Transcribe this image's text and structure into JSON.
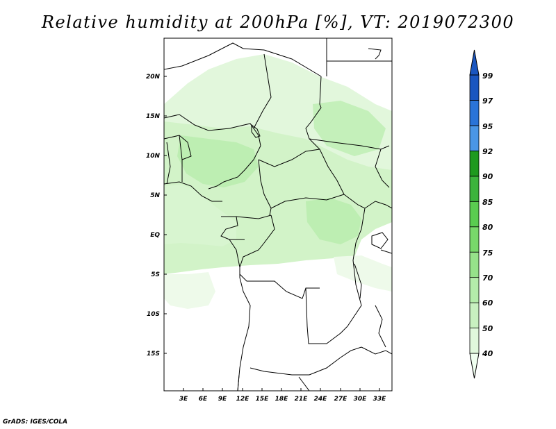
{
  "title": "Relative humidity at 200hPa [%], VT: 2019072300",
  "credit": "GrADS: IGES/COLA",
  "map": {
    "lat_labels": [
      "20N",
      "15N",
      "10N",
      "5N",
      "EQ",
      "5S",
      "10S",
      "15S"
    ],
    "lon_labels": [
      "3E",
      "6E",
      "9E",
      "12E",
      "15E",
      "18E",
      "21E",
      "24E",
      "27E",
      "30E",
      "33E"
    ]
  },
  "colorbar": {
    "labels": [
      "40",
      "50",
      "60",
      "70",
      "75",
      "80",
      "85",
      "90",
      "92",
      "95",
      "97",
      "99"
    ],
    "colors": [
      "#f0fff0",
      "#e0f8dc",
      "#c8f0c0",
      "#b4ecaa",
      "#96e28a",
      "#78d86a",
      "#5acc50",
      "#3cb43c",
      "#1e9a1e",
      "#4a96e6",
      "#2a74d8",
      "#1a56c0"
    ]
  },
  "palette": {
    "light": "#e4f8e0",
    "mid": "#ccf2c4",
    "strong": "#b6ecaa",
    "border": "#000000"
  }
}
